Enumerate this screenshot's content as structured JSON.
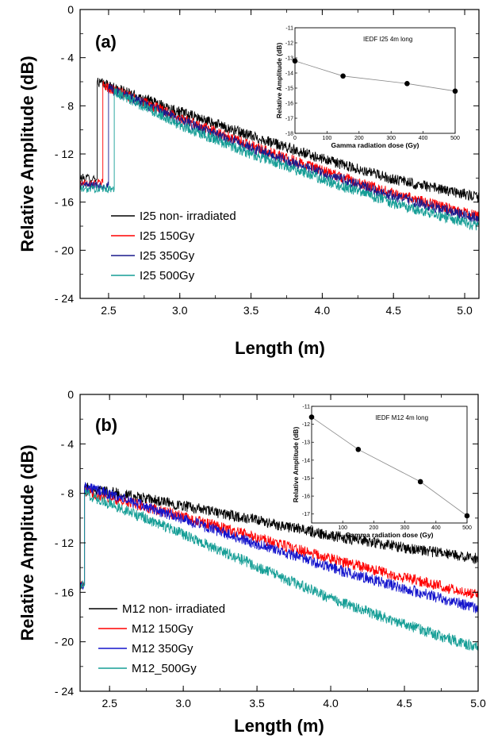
{
  "chart_data": [
    {
      "type": "line",
      "panel_label": "(a)",
      "xlabel": "Length (m)",
      "ylabel": "Relative Amplitude (dB)",
      "xlim": [
        2.3,
        5.1
      ],
      "ylim": [
        -24,
        0
      ],
      "x_ticks": [
        2.5,
        3.0,
        3.5,
        4.0,
        4.5,
        5.0
      ],
      "x_tick_labels": [
        "2.5",
        "3.0",
        "3.5",
        "4.0",
        "4.5",
        "5.0"
      ],
      "y_ticks": [
        0,
        -4,
        -8,
        -12,
        -16,
        -20,
        -24
      ],
      "y_tick_labels": [
        "0",
        "- 4",
        "- 8",
        "- 12",
        "- 16",
        "- 20",
        "- 24"
      ],
      "legend_position": "bottom-left",
      "series": [
        {
          "name": "I25 non- irradiated",
          "color": "#000000",
          "baseline": -14.0,
          "rise_x": 2.42,
          "x": [
            2.42,
            3.0,
            3.5,
            4.0,
            4.5,
            5.1
          ],
          "values": [
            -6.0,
            -8.5,
            -10.5,
            -12.4,
            -14.1,
            -15.6
          ]
        },
        {
          "name": "I25 150Gy",
          "color": "#ff0000",
          "baseline": -14.4,
          "rise_x": 2.46,
          "x": [
            2.46,
            3.0,
            3.5,
            4.0,
            4.5,
            5.1
          ],
          "values": [
            -6.3,
            -9.0,
            -11.3,
            -13.4,
            -15.3,
            -17.2
          ]
        },
        {
          "name": "I25 350Gy",
          "color": "#1a1a8c",
          "baseline": -14.6,
          "rise_x": 2.5,
          "x": [
            2.5,
            3.0,
            3.5,
            4.0,
            4.5,
            5.1
          ],
          "values": [
            -6.5,
            -9.2,
            -11.5,
            -13.6,
            -15.5,
            -17.4
          ]
        },
        {
          "name": "I25 500Gy",
          "color": "#169e96",
          "baseline": -14.9,
          "rise_x": 2.54,
          "x": [
            2.54,
            3.0,
            3.5,
            4.0,
            4.5,
            5.1
          ],
          "values": [
            -6.8,
            -9.6,
            -12.0,
            -14.1,
            -16.1,
            -18.0
          ]
        }
      ],
      "inset": {
        "title": "IEDF I25 4m long",
        "xlabel": "Gamma radiation dose (Gy)",
        "ylabel": "Relative Amplitude (dB)",
        "xlim": [
          0,
          500
        ],
        "ylim": [
          -18,
          -11
        ],
        "x_ticks": [
          0,
          100,
          200,
          300,
          400,
          500
        ],
        "y_ticks": [
          -11,
          -12,
          -13,
          -14,
          -15,
          -16,
          -17,
          -18
        ],
        "x": [
          0,
          150,
          350,
          500
        ],
        "values": [
          -13.2,
          -14.2,
          -14.7,
          -15.2
        ]
      }
    },
    {
      "type": "line",
      "panel_label": "(b)",
      "xlabel": "Length (m)",
      "ylabel": "Relative Amplitude (dB)",
      "xlim": [
        2.3,
        5.0
      ],
      "ylim": [
        -24,
        0
      ],
      "x_ticks": [
        2.5,
        3.0,
        3.5,
        4.0,
        4.5,
        5.0
      ],
      "x_tick_labels": [
        "2.5",
        "3.0",
        "3.5",
        "4.0",
        "4.5",
        "5.0"
      ],
      "y_ticks": [
        0,
        -4,
        -8,
        -12,
        -16,
        -20,
        -24
      ],
      "y_tick_labels": [
        "0",
        "- 4",
        "- 8",
        "- 12",
        "- 16",
        "- 20",
        "- 24"
      ],
      "legend_position": "bottom-left",
      "series": [
        {
          "name": "M12 non- irradiated",
          "color": "#000000",
          "baseline": -15.4,
          "rise_x": 2.33,
          "x": [
            2.33,
            3.0,
            3.5,
            4.0,
            4.5,
            5.0
          ],
          "values": [
            -7.5,
            -9.0,
            -10.2,
            -11.4,
            -12.4,
            -13.3
          ]
        },
        {
          "name": "M12 150Gy",
          "color": "#ff0000",
          "baseline": -15.4,
          "rise_x": 2.33,
          "x": [
            2.33,
            3.0,
            3.5,
            4.0,
            4.5,
            5.0
          ],
          "values": [
            -7.8,
            -9.9,
            -11.6,
            -13.3,
            -14.8,
            -16.2
          ]
        },
        {
          "name": "M12 350Gy",
          "color": "#1414cc",
          "baseline": -15.4,
          "rise_x": 2.33,
          "x": [
            2.33,
            3.0,
            3.5,
            4.0,
            4.5,
            5.0
          ],
          "values": [
            -7.4,
            -10.1,
            -12.1,
            -14.0,
            -15.7,
            -17.3
          ]
        },
        {
          "name": "M12_500Gy",
          "color": "#169e96",
          "baseline": -15.4,
          "rise_x": 2.33,
          "x": [
            2.33,
            3.0,
            3.5,
            4.0,
            4.5,
            5.0
          ],
          "values": [
            -8.0,
            -11.3,
            -13.9,
            -16.5,
            -18.6,
            -20.5
          ]
        }
      ],
      "inset": {
        "title": "IEDF M12 4m long",
        "xlabel": "Gamma radiation dose (Gy)",
        "ylabel": "Relative Amplitude (dB)",
        "xlim": [
          0,
          500
        ],
        "ylim": [
          -17.5,
          -11
        ],
        "x_ticks": [
          0,
          100,
          200,
          300,
          400,
          500
        ],
        "y_ticks": [
          -11,
          -12,
          -13,
          -14,
          -15,
          -16,
          -17
        ],
        "x": [
          0,
          150,
          350,
          500
        ],
        "values": [
          -11.6,
          -13.4,
          -15.2,
          -17.1
        ]
      }
    }
  ]
}
